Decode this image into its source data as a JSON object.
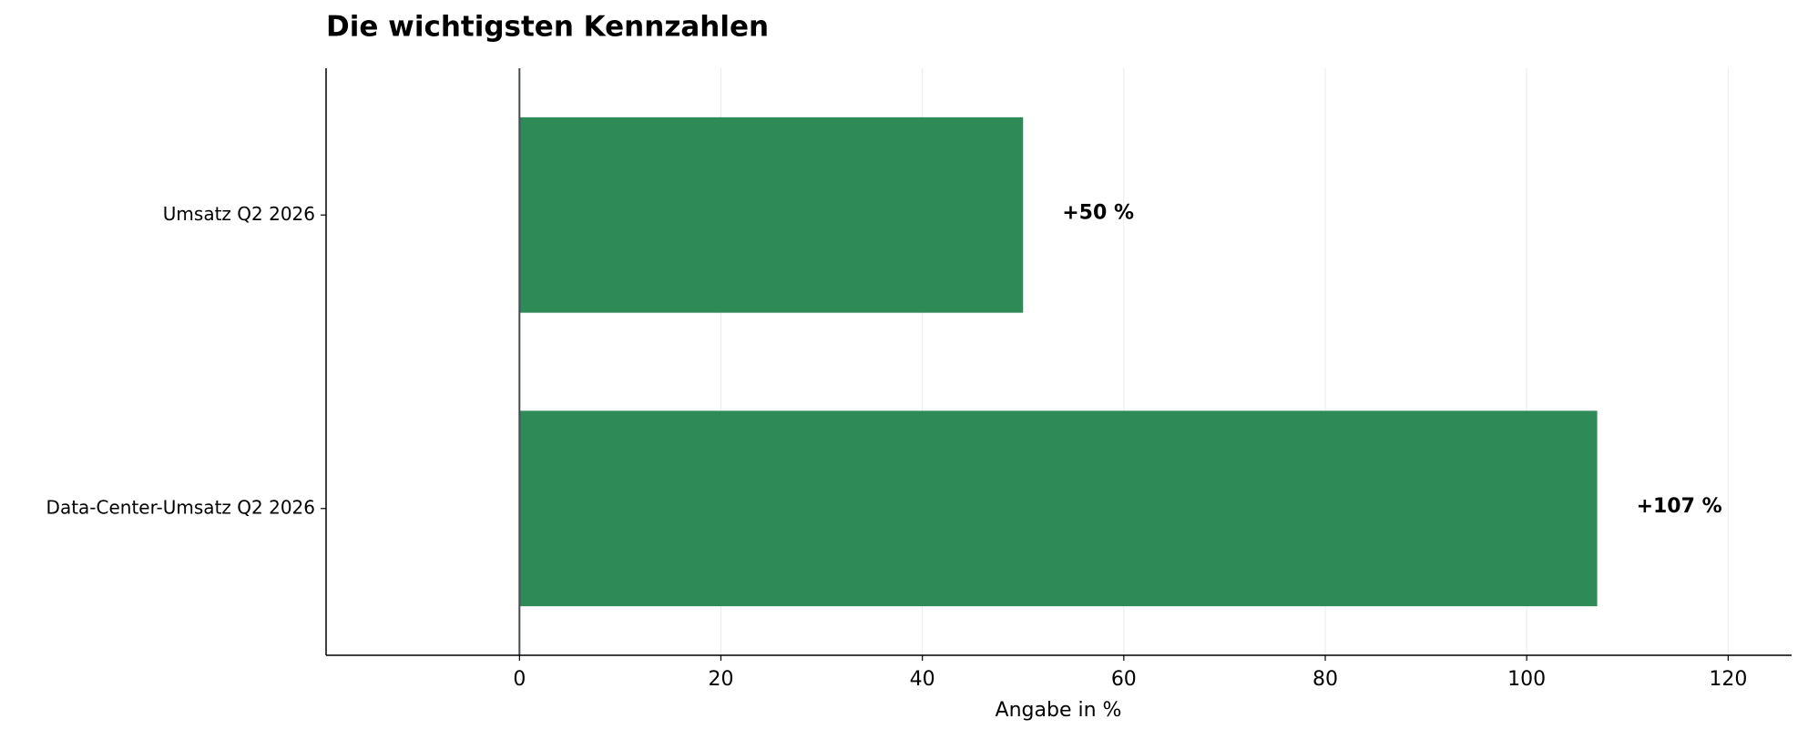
{
  "chart_data": {
    "type": "bar",
    "orientation": "horizontal",
    "title": "Die wichtigsten Kennzahlen",
    "categories": [
      "Umsatz Q2 2026",
      "Data-Center-Umsatz Q2 2026"
    ],
    "values": [
      50,
      107
    ],
    "value_labels": [
      "+50 %",
      "+107 %"
    ],
    "color": "#2e8b57",
    "x_label": "Angabe in %",
    "xlim": [
      -19.2,
      126.3
    ],
    "xticks": [
      0,
      20,
      40,
      60,
      80,
      100,
      120
    ],
    "grid": true
  }
}
